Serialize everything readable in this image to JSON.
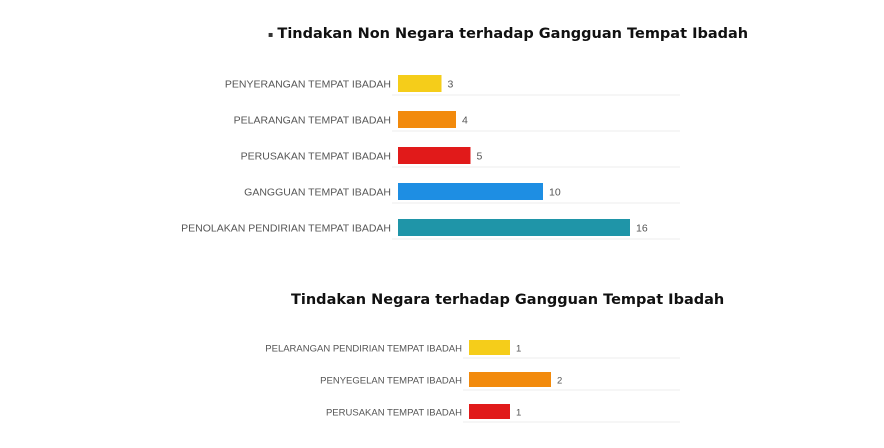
{
  "chart_data": [
    {
      "type": "bar",
      "orientation": "horizontal",
      "title": "Tindakan Non Negara terhadap Gangguan Tempat Ibadah",
      "categories": [
        "PENYERANGAN TEMPAT IBADAH",
        "PELARANGAN TEMPAT IBADAH",
        "PERUSAKAN TEMPAT IBADAH",
        "GANGGUAN TEMPAT IBADAH",
        "PENOLAKAN PENDIRIAN TEMPAT IBADAH"
      ],
      "values": [
        3,
        4,
        5,
        10,
        16
      ],
      "colors": [
        "#f5cd1a",
        "#f28a0c",
        "#e11a1a",
        "#1e8ee3",
        "#1f95a8"
      ],
      "grid": false,
      "data_labels": true
    },
    {
      "type": "bar",
      "orientation": "horizontal",
      "title": "Tindakan Negara terhadap Gangguan Tempat Ibadah",
      "categories": [
        "PELARANGAN PENDIRIAN TEMPAT IBADAH",
        "PENYEGELAN TEMPAT IBADAH",
        "PERUSAKAN TEMPAT IBADAH"
      ],
      "values": [
        1,
        2,
        1
      ],
      "colors": [
        "#f5cd1a",
        "#f28a0c",
        "#e11a1a"
      ],
      "grid": false,
      "data_labels": true
    }
  ]
}
